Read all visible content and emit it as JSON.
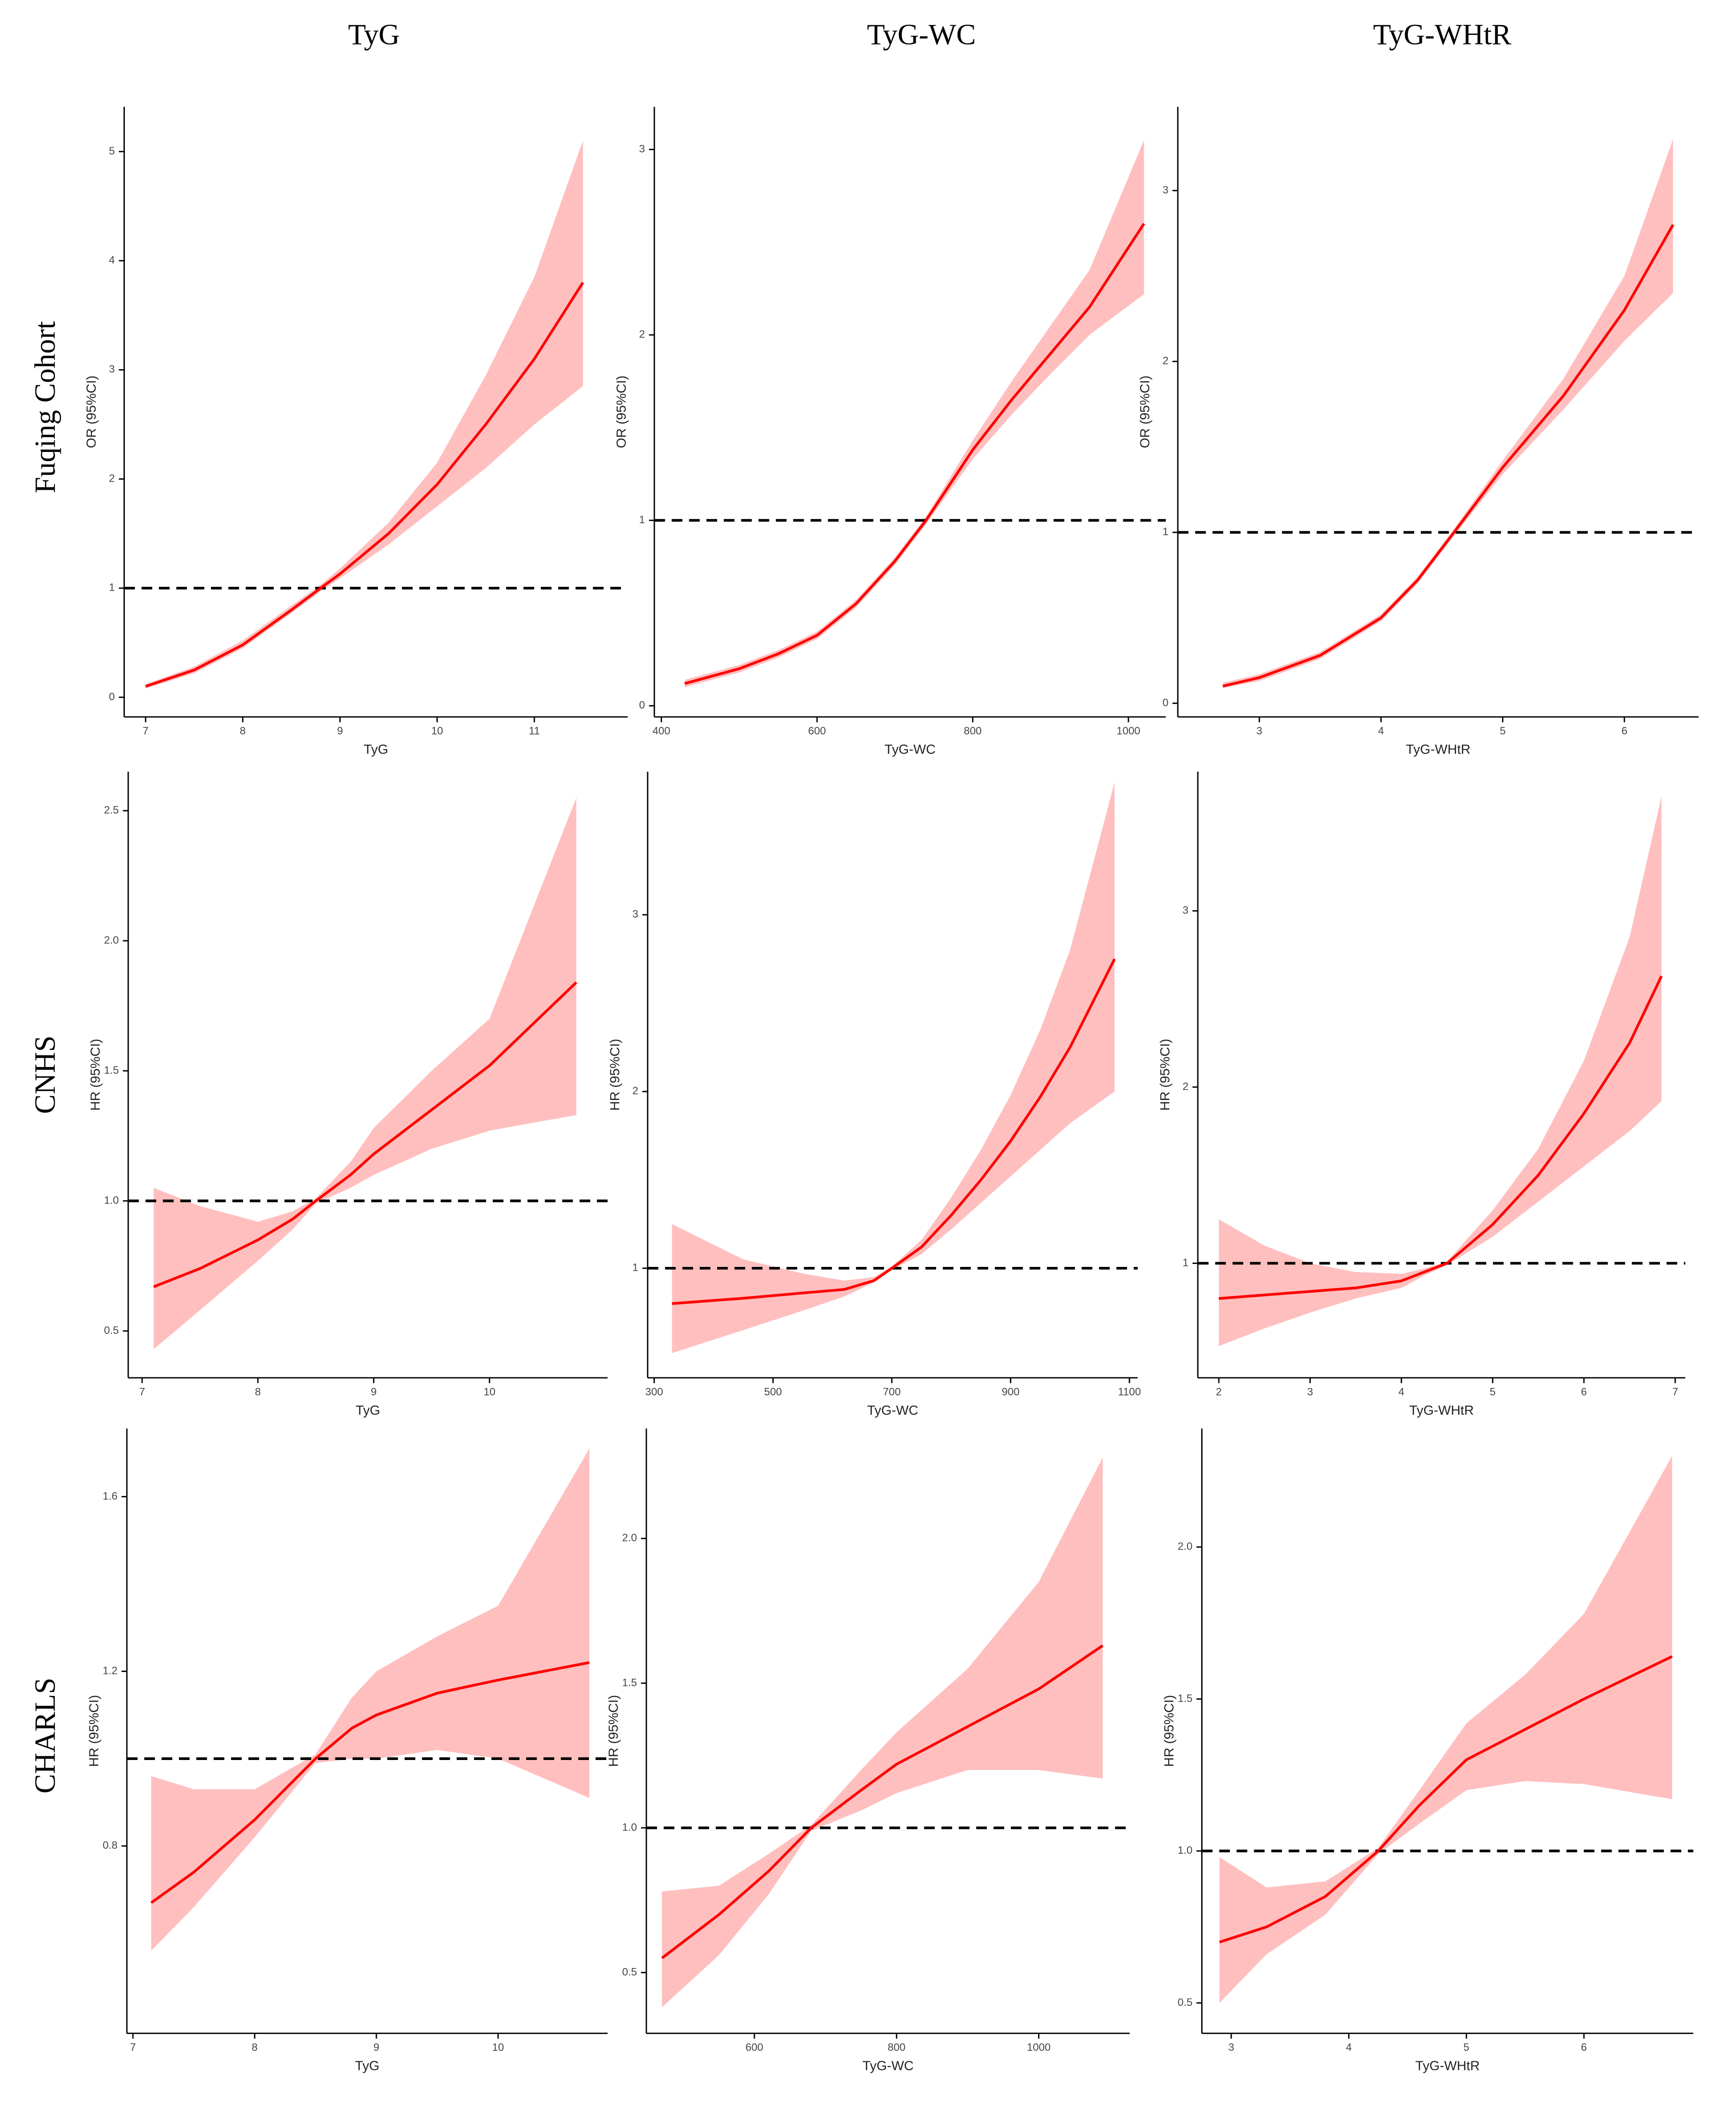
{
  "column_titles": [
    "TyG",
    "TyG-WC",
    "TyG-WHtR"
  ],
  "row_labels": [
    "Fuqing Cohort",
    "CNHS",
    "CHARLS"
  ],
  "chart_data": [
    {
      "type": "line",
      "x_label": "TyG",
      "y_label": "OR (95%CI)",
      "color": "#ff0000",
      "band_color": "#ffbfbf",
      "reference_line": 1,
      "xlim": [
        6.78,
        11.96
      ],
      "ylim": [
        -0.18,
        5.41
      ],
      "xticks": [
        7,
        8,
        9,
        10,
        11
      ],
      "yticks": [
        0,
        1,
        2,
        3,
        4,
        5
      ],
      "x": [
        7,
        7.5,
        8,
        8.5,
        8.8,
        9,
        9.5,
        10,
        10.5,
        11,
        11.5
      ],
      "values": [
        0.1,
        0.25,
        0.48,
        0.8,
        1.0,
        1.13,
        1.5,
        1.95,
        2.5,
        3.1,
        3.8
      ],
      "lower": [
        0.08,
        0.22,
        0.45,
        0.77,
        0.97,
        1.09,
        1.4,
        1.75,
        2.1,
        2.5,
        2.85
      ],
      "upper": [
        0.12,
        0.28,
        0.52,
        0.84,
        1.03,
        1.18,
        1.6,
        2.15,
        2.95,
        3.85,
        5.1
      ]
    },
    {
      "type": "line",
      "x_label": "TyG-WC",
      "y_label": "OR (95%CI)",
      "color": "#ff0000",
      "band_color": "#ffbfbf",
      "reference_line": 1,
      "xlim": [
        391,
        1048
      ],
      "ylim": [
        -0.06,
        3.23
      ],
      "xticks": [
        400,
        600,
        800,
        1000
      ],
      "yticks": [
        0,
        1,
        2,
        3
      ],
      "x": [
        430,
        500,
        550,
        600,
        650,
        700,
        740,
        800,
        850,
        900,
        950,
        1020
      ],
      "values": [
        0.12,
        0.2,
        0.28,
        0.38,
        0.55,
        0.78,
        1.0,
        1.38,
        1.65,
        1.9,
        2.15,
        2.6
      ],
      "lower": [
        0.1,
        0.18,
        0.26,
        0.36,
        0.53,
        0.76,
        0.98,
        1.33,
        1.57,
        1.79,
        2.0,
        2.22
      ],
      "upper": [
        0.14,
        0.22,
        0.3,
        0.4,
        0.57,
        0.8,
        1.02,
        1.43,
        1.75,
        2.05,
        2.35,
        3.05
      ]
    },
    {
      "type": "line",
      "x_label": "TyG-WHtR",
      "y_label": "OR (95%CI)",
      "color": "#ff0000",
      "band_color": "#ffbfbf",
      "reference_line": 1,
      "xlim": [
        2.33,
        6.61
      ],
      "ylim": [
        -0.08,
        3.49
      ],
      "xticks": [
        3,
        4,
        5,
        6
      ],
      "yticks": [
        0,
        1,
        2,
        3
      ],
      "x": [
        2.7,
        3,
        3.5,
        4,
        4.3,
        4.6,
        5,
        5.5,
        6,
        6.4
      ],
      "values": [
        0.1,
        0.15,
        0.28,
        0.5,
        0.72,
        1.0,
        1.38,
        1.8,
        2.3,
        2.8
      ],
      "lower": [
        0.09,
        0.13,
        0.26,
        0.48,
        0.7,
        0.98,
        1.34,
        1.72,
        2.12,
        2.4
      ],
      "upper": [
        0.12,
        0.17,
        0.3,
        0.52,
        0.74,
        1.02,
        1.42,
        1.9,
        2.5,
        3.3
      ]
    },
    {
      "type": "line",
      "x_label": "TyG",
      "y_label": "HR (95%CI)",
      "color": "#ff0000",
      "band_color": "#ffbfbf",
      "reference_line": 1,
      "xlim": [
        6.88,
        11.02
      ],
      "ylim": [
        0.32,
        2.65
      ],
      "xticks": [
        7,
        8,
        9,
        10
      ],
      "yticks": [
        0.5,
        {
          "value": 1,
          "label": "1.0"
        },
        1.5,
        {
          "value": 2,
          "label": "2.0"
        },
        2.5
      ],
      "x": [
        7.1,
        7.5,
        8,
        8.3,
        8.5,
        8.8,
        9,
        9.5,
        10,
        10.75
      ],
      "values": [
        0.67,
        0.74,
        0.85,
        0.93,
        1.0,
        1.1,
        1.18,
        1.35,
        1.52,
        1.84
      ],
      "lower": [
        0.43,
        0.58,
        0.77,
        0.89,
        0.99,
        1.05,
        1.1,
        1.2,
        1.27,
        1.33
      ],
      "upper": [
        1.05,
        0.98,
        0.92,
        0.96,
        1.01,
        1.15,
        1.28,
        1.5,
        1.7,
        2.55
      ]
    },
    {
      "type": "line",
      "x_label": "TyG-WC",
      "y_label": "HR (95%CI)",
      "color": "#ff0000",
      "band_color": "#ffbfbf",
      "reference_line": 1,
      "xlim": [
        289,
        1114
      ],
      "ylim": [
        0.38,
        3.81
      ],
      "xticks": [
        300,
        500,
        700,
        900,
        1100
      ],
      "yticks": [
        1,
        2,
        3
      ],
      "x": [
        330,
        450,
        550,
        620,
        670,
        700,
        750,
        800,
        850,
        900,
        950,
        1000,
        1075
      ],
      "values": [
        0.8,
        0.83,
        0.86,
        0.88,
        0.93,
        1.0,
        1.12,
        1.3,
        1.5,
        1.72,
        1.97,
        2.25,
        2.75
      ],
      "lower": [
        0.52,
        0.65,
        0.76,
        0.84,
        0.92,
        0.99,
        1.08,
        1.22,
        1.37,
        1.52,
        1.67,
        1.82,
        2.0
      ],
      "upper": [
        1.25,
        1.05,
        0.97,
        0.93,
        0.95,
        1.01,
        1.16,
        1.4,
        1.67,
        1.98,
        2.35,
        2.8,
        3.75
      ]
    },
    {
      "type": "line",
      "x_label": "TyG-WHtR",
      "y_label": "HR (95%CI)",
      "color": "#ff0000",
      "band_color": "#ffbfbf",
      "reference_line": 1,
      "xlim": [
        1.77,
        7.11
      ],
      "ylim": [
        0.35,
        3.79
      ],
      "xticks": [
        2,
        3,
        4,
        5,
        6,
        7
      ],
      "yticks": [
        1,
        2,
        3
      ],
      "x": [
        2,
        2.5,
        3,
        3.5,
        4,
        4.25,
        4.5,
        5,
        5.5,
        6,
        6.5,
        6.85
      ],
      "values": [
        0.8,
        0.82,
        0.84,
        0.86,
        0.9,
        0.95,
        1.0,
        1.22,
        1.5,
        1.85,
        2.25,
        2.63
      ],
      "lower": [
        0.53,
        0.63,
        0.72,
        0.8,
        0.86,
        0.93,
        0.99,
        1.15,
        1.35,
        1.55,
        1.75,
        1.92
      ],
      "upper": [
        1.25,
        1.1,
        1.0,
        0.95,
        0.94,
        0.97,
        1.01,
        1.3,
        1.65,
        2.15,
        2.85,
        3.65
      ]
    },
    {
      "type": "line",
      "x_label": "TyG",
      "y_label": "HR (95%CI)",
      "color": "#ff0000",
      "band_color": "#ffbfbf",
      "reference_line": 1,
      "xlim": [
        6.95,
        10.9
      ],
      "ylim": [
        0.371,
        1.756
      ],
      "xticks": [
        7,
        8,
        9,
        10
      ],
      "yticks": [
        0.8,
        1.2,
        1.6
      ],
      "x": [
        7.15,
        7.5,
        8,
        8.5,
        8.8,
        9,
        9.5,
        10,
        10.75
      ],
      "values": [
        0.67,
        0.74,
        0.86,
        1.0,
        1.07,
        1.1,
        1.15,
        1.18,
        1.22
      ],
      "lower": [
        0.56,
        0.66,
        0.82,
        0.99,
        1.0,
        1.0,
        1.02,
        1.0,
        0.91
      ],
      "upper": [
        0.96,
        0.93,
        0.93,
        1.01,
        1.14,
        1.2,
        1.28,
        1.35,
        1.71
      ]
    },
    {
      "type": "line",
      "x_label": "TyG-WC",
      "y_label": "HR (95%CI)",
      "color": "#ff0000",
      "band_color": "#ffbfbf",
      "reference_line": 1,
      "xlim": [
        448,
        1128
      ],
      "ylim": [
        0.29,
        2.38
      ],
      "xticks": [
        600,
        800,
        1000
      ],
      "yticks": [
        0.5,
        {
          "value": 1,
          "label": "1.0"
        },
        1.5,
        {
          "value": 2,
          "label": "2.0"
        }
      ],
      "x": [
        470,
        550,
        620,
        680,
        750,
        800,
        900,
        1000,
        1090
      ],
      "values": [
        0.55,
        0.7,
        0.85,
        1.0,
        1.13,
        1.22,
        1.35,
        1.48,
        1.63
      ],
      "lower": [
        0.38,
        0.56,
        0.77,
        0.99,
        1.06,
        1.12,
        1.2,
        1.2,
        1.17
      ],
      "upper": [
        0.78,
        0.8,
        0.91,
        1.01,
        1.2,
        1.33,
        1.55,
        1.85,
        2.28
      ]
    },
    {
      "type": "line",
      "x_label": "TyG-WHtR",
      "y_label": "HR (95%CI)",
      "color": "#ff0000",
      "band_color": "#ffbfbf",
      "reference_line": 1,
      "xlim": [
        2.75,
        6.93
      ],
      "ylim": [
        0.4,
        2.39
      ],
      "xticks": [
        3,
        4,
        5,
        6
      ],
      "yticks": [
        0.5,
        {
          "value": 1,
          "label": "1.0"
        },
        1.5,
        {
          "value": 2,
          "label": "2.0"
        }
      ],
      "x": [
        2.9,
        3.3,
        3.8,
        4.25,
        4.6,
        5,
        5.5,
        6,
        6.75
      ],
      "values": [
        0.7,
        0.75,
        0.85,
        1.0,
        1.15,
        1.3,
        1.4,
        1.5,
        1.64
      ],
      "lower": [
        0.5,
        0.66,
        0.79,
        0.99,
        1.09,
        1.2,
        1.23,
        1.22,
        1.17
      ],
      "upper": [
        0.98,
        0.88,
        0.9,
        1.01,
        1.2,
        1.42,
        1.58,
        1.78,
        2.3
      ]
    }
  ]
}
